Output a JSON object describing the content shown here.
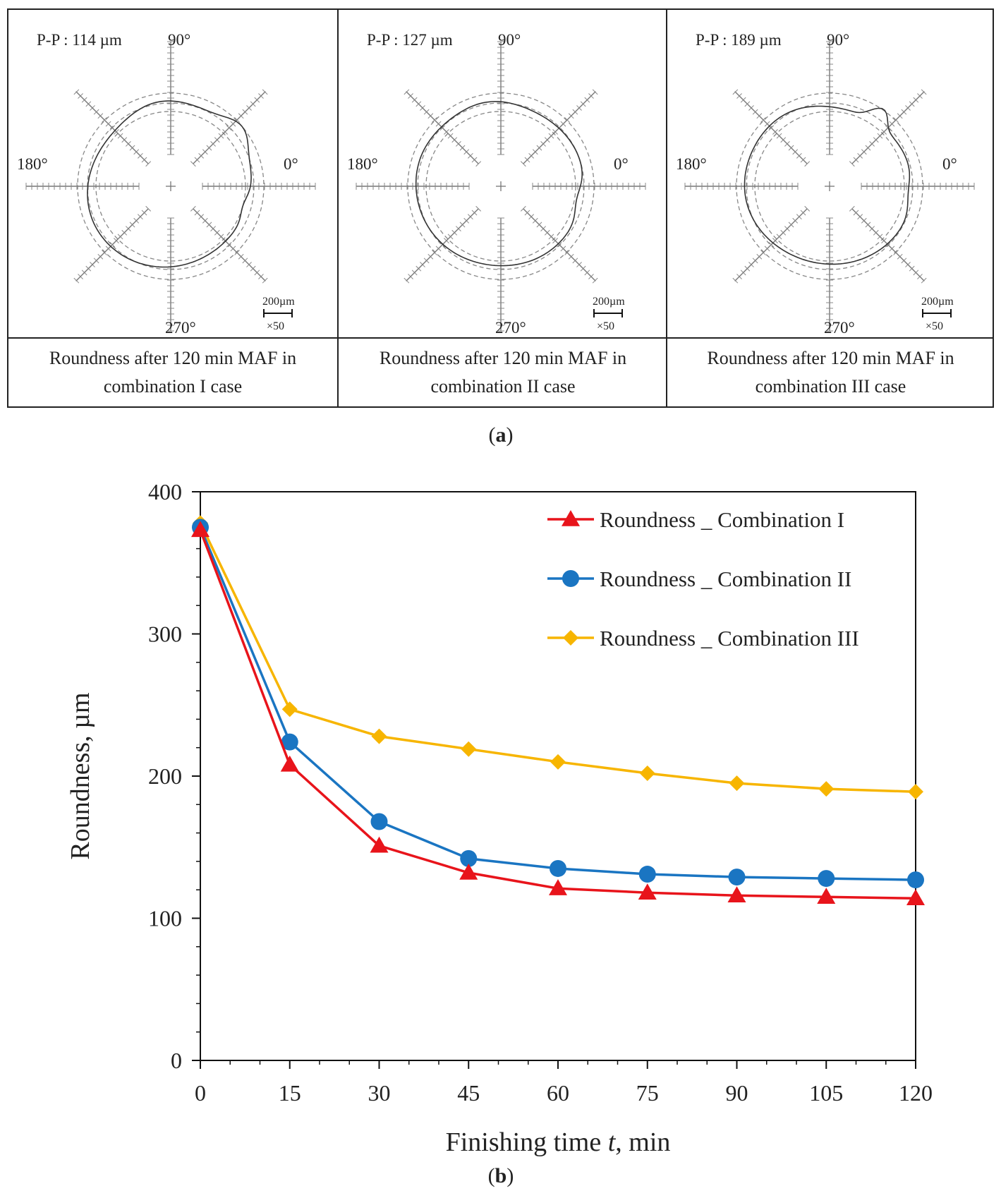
{
  "panel_a": {
    "label": "(a)",
    "label_letter": "a",
    "cells": [
      {
        "pp": "P-P : 114 µm",
        "a90": "90°",
        "a180": "180°",
        "a0": "0°",
        "a270": "270°",
        "scale_len": "200µm",
        "scale_mag": "×50",
        "caption_line1": "Roundness after 120 min MAF in",
        "caption_line2": "combination I case"
      },
      {
        "pp": "P-P : 127 µm",
        "a90": "90°",
        "a180": "180°",
        "a0": "0°",
        "a270": "270°",
        "scale_len": "200µm",
        "scale_mag": "×50",
        "caption_line1": "Roundness after 120 min MAF in",
        "caption_line2": "combination II case"
      },
      {
        "pp": "P-P : 189 µm",
        "a90": "90°",
        "a180": "180°",
        "a0": "0°",
        "a270": "270°",
        "scale_len": "200µm",
        "scale_mag": "×50",
        "caption_line1": "Roundness after 120 min MAF in",
        "caption_line2": "combination III case"
      }
    ]
  },
  "panel_b": {
    "label": "(b)",
    "label_letter": "b"
  },
  "chart_data": {
    "type": "line",
    "xlabel": "Finishing time t, min",
    "xlabel_prefix": "Finishing time ",
    "xlabel_var": "t",
    "xlabel_suffix": ", min",
    "ylabel": "Roundness, µm",
    "x": [
      0,
      15,
      30,
      45,
      60,
      75,
      90,
      105,
      120
    ],
    "xlim": [
      0,
      120
    ],
    "ylim": [
      0,
      400
    ],
    "yticks": [
      0,
      100,
      200,
      300,
      400
    ],
    "grid": false,
    "legend_position": "top-right",
    "series": [
      {
        "name": "Roundness _ Combination I",
        "marker": "triangle",
        "color": "#e8141b",
        "values": [
          373,
          208,
          151,
          132,
          121,
          118,
          116,
          115,
          114
        ]
      },
      {
        "name": "Roundness _ Combination II",
        "marker": "circle",
        "color": "#1a75c2",
        "values": [
          375,
          224,
          168,
          142,
          135,
          131,
          129,
          128,
          127
        ]
      },
      {
        "name": "Roundness _ Combination III",
        "marker": "diamond",
        "color": "#f7b500",
        "values": [
          378,
          247,
          228,
          219,
          210,
          202,
          195,
          191,
          189
        ]
      }
    ]
  }
}
